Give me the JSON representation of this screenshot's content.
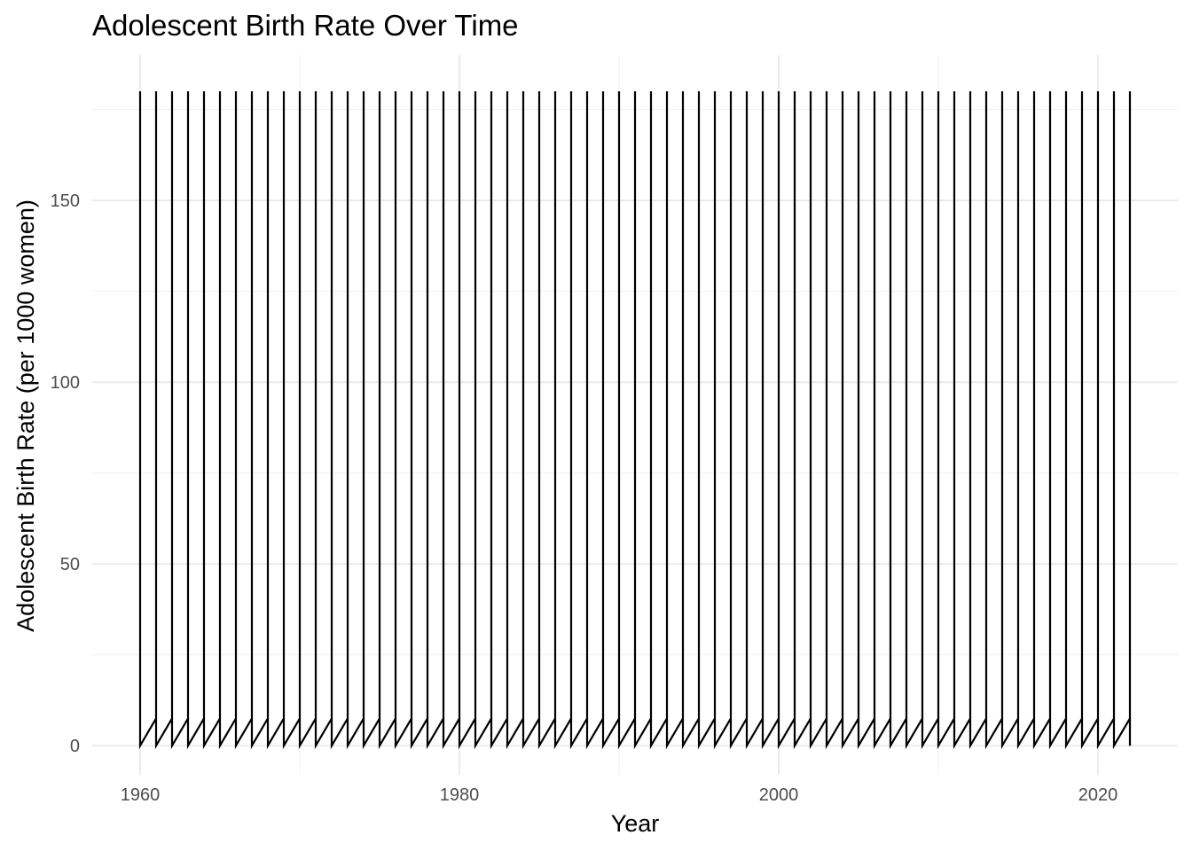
{
  "chart_data": {
    "type": "line",
    "title": "Adolescent Birth Rate Over Time",
    "xlabel": "Year",
    "ylabel": "Adolescent Birth Rate (per 1000 women)",
    "xlim": [
      1957,
      2025
    ],
    "ylim": [
      -8,
      190
    ],
    "x_ticks": [
      1960,
      1980,
      2000,
      2020
    ],
    "y_ticks": [
      0,
      50,
      100,
      150
    ],
    "grid": true,
    "legend": "none",
    "line_color": "#000000",
    "pattern": {
      "description_values": "At each year from 1960 to 2022 the line rises vertically from the local low to 180, then drops back to the low; between years it climbs from 0 to about 7.5.",
      "year_start": 1960,
      "year_end": 2022,
      "peak": 180,
      "low": 0,
      "interyear_rise": 7.5
    }
  }
}
